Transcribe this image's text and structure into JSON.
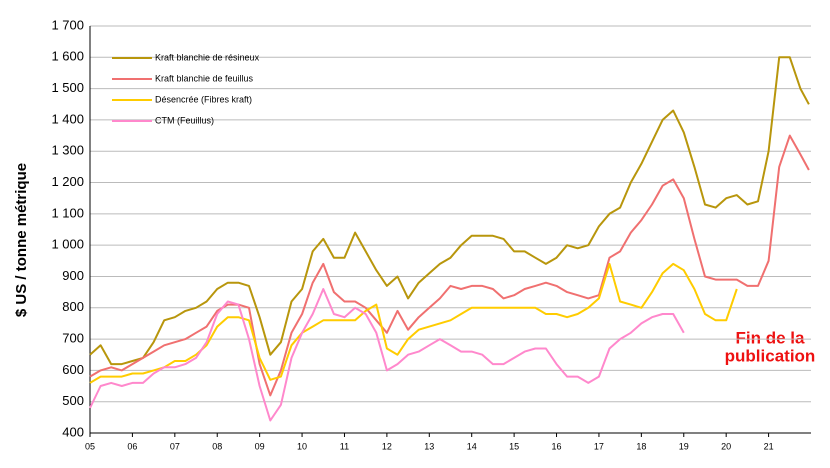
{
  "chart_data": {
    "type": "line",
    "ylabel": "$ US / tonne métrique",
    "annotation": [
      "Fin de la",
      "publication"
    ],
    "legend": "upper left",
    "grid": true,
    "xlim": [
      2005,
      2022
    ],
    "xticks": [
      {
        "value": 2005,
        "label": "05"
      },
      {
        "value": 2006,
        "label": "06"
      },
      {
        "value": 2007,
        "label": "07"
      },
      {
        "value": 2008,
        "label": "08"
      },
      {
        "value": 2009,
        "label": "09"
      },
      {
        "value": 2010,
        "label": "10"
      },
      {
        "value": 2011,
        "label": "11"
      },
      {
        "value": 2012,
        "label": "12"
      },
      {
        "value": 2013,
        "label": "13"
      },
      {
        "value": 2014,
        "label": "14"
      },
      {
        "value": 2015,
        "label": "15"
      },
      {
        "value": 2016,
        "label": "16"
      },
      {
        "value": 2017,
        "label": "17"
      },
      {
        "value": 2018,
        "label": "18"
      },
      {
        "value": 2019,
        "label": "19"
      },
      {
        "value": 2020,
        "label": "20"
      },
      {
        "value": 2021,
        "label": "21"
      }
    ],
    "ylim": [
      400,
      1700
    ],
    "yticks": [
      400,
      500,
      600,
      700,
      800,
      900,
      {
        "value": 1000,
        "label": "1 000"
      },
      {
        "value": 1100,
        "label": "1 100"
      },
      {
        "value": 1200,
        "label": "1 200"
      },
      {
        "value": 1300,
        "label": "1 300"
      },
      {
        "value": 1400,
        "label": "1 400"
      },
      {
        "value": 1500,
        "label": "1 500"
      },
      {
        "value": 1600,
        "label": "1 600"
      },
      {
        "value": 1700,
        "label": "1 700"
      }
    ],
    "x": [
      2005,
      2005.25,
      2005.5,
      2005.75,
      2006,
      2006.25,
      2006.5,
      2006.75,
      2007,
      2007.25,
      2007.5,
      2007.75,
      2008,
      2008.25,
      2008.5,
      2008.75,
      2009,
      2009.25,
      2009.5,
      2009.75,
      2010,
      2010.25,
      2010.5,
      2010.75,
      2011,
      2011.25,
      2011.5,
      2011.75,
      2012,
      2012.25,
      2012.5,
      2012.75,
      2013,
      2013.25,
      2013.5,
      2013.75,
      2014,
      2014.25,
      2014.5,
      2014.75,
      2015,
      2015.25,
      2015.5,
      2015.75,
      2016,
      2016.25,
      2016.5,
      2016.75,
      2017,
      2017.25,
      2017.5,
      2017.75,
      2018,
      2018.25,
      2018.5,
      2018.75,
      2019,
      2019.25,
      2019.5,
      2019.75,
      2020,
      2020.25,
      2020.5,
      2020.75,
      2021,
      2021.25,
      2021.5,
      2021.75,
      2021.95
    ],
    "series": [
      {
        "name": "Kraft blanchie de résineux",
        "color": "#b8960c",
        "values": [
          650,
          680,
          620,
          620,
          630,
          640,
          690,
          760,
          770,
          790,
          800,
          820,
          860,
          880,
          880,
          870,
          770,
          650,
          690,
          820,
          860,
          980,
          1020,
          960,
          960,
          1040,
          980,
          920,
          870,
          900,
          830,
          880,
          910,
          940,
          960,
          1000,
          1030,
          1030,
          1030,
          1020,
          980,
          980,
          960,
          940,
          960,
          1000,
          990,
          1000,
          1060,
          1100,
          1120,
          1200,
          1260,
          1330,
          1400,
          1430,
          1360,
          1250,
          1130,
          1120,
          1150,
          1160,
          1130,
          1140,
          1300,
          1600,
          1600,
          1500,
          1450
        ]
      },
      {
        "name": "Kraft blanchie de feuillus",
        "color": "#f07070",
        "values": [
          580,
          600,
          610,
          600,
          620,
          640,
          660,
          680,
          690,
          700,
          720,
          740,
          790,
          810,
          810,
          800,
          620,
          520,
          600,
          720,
          780,
          880,
          940,
          850,
          820,
          820,
          800,
          760,
          720,
          790,
          730,
          770,
          800,
          830,
          870,
          860,
          870,
          870,
          860,
          830,
          840,
          860,
          870,
          880,
          870,
          850,
          840,
          830,
          840,
          960,
          980,
          1040,
          1080,
          1130,
          1190,
          1210,
          1150,
          1020,
          900,
          890,
          890,
          890,
          870,
          870,
          950,
          1250,
          1350,
          1290,
          1240
        ]
      },
      {
        "name": "Désencrée (Fibres kraft)",
        "color": "#ffcc00",
        "values": [
          560,
          580,
          580,
          580,
          590,
          590,
          600,
          610,
          630,
          630,
          650,
          680,
          740,
          770,
          770,
          760,
          640,
          570,
          580,
          680,
          720,
          740,
          760,
          760,
          760,
          760,
          790,
          810,
          670,
          650,
          700,
          730,
          740,
          750,
          760,
          780,
          800,
          800,
          800,
          800,
          800,
          800,
          800,
          780,
          780,
          770,
          780,
          800,
          830,
          940,
          820,
          810,
          800,
          850,
          910,
          940,
          920,
          860,
          780,
          760,
          760,
          860,
          null,
          null,
          null,
          null,
          null,
          null,
          null
        ]
      },
      {
        "name": "CTM (Feuillus)",
        "color": "#ff88cc",
        "values": [
          480,
          550,
          560,
          550,
          560,
          560,
          590,
          610,
          610,
          620,
          640,
          690,
          780,
          820,
          810,
          700,
          550,
          440,
          490,
          640,
          720,
          780,
          860,
          780,
          770,
          800,
          780,
          720,
          600,
          620,
          650,
          660,
          680,
          700,
          680,
          660,
          660,
          650,
          620,
          620,
          640,
          660,
          670,
          670,
          620,
          580,
          580,
          560,
          580,
          670,
          700,
          720,
          750,
          770,
          780,
          780,
          720,
          null,
          null,
          null,
          null,
          null,
          null,
          null,
          null,
          null,
          null,
          null,
          null
        ]
      }
    ]
  }
}
